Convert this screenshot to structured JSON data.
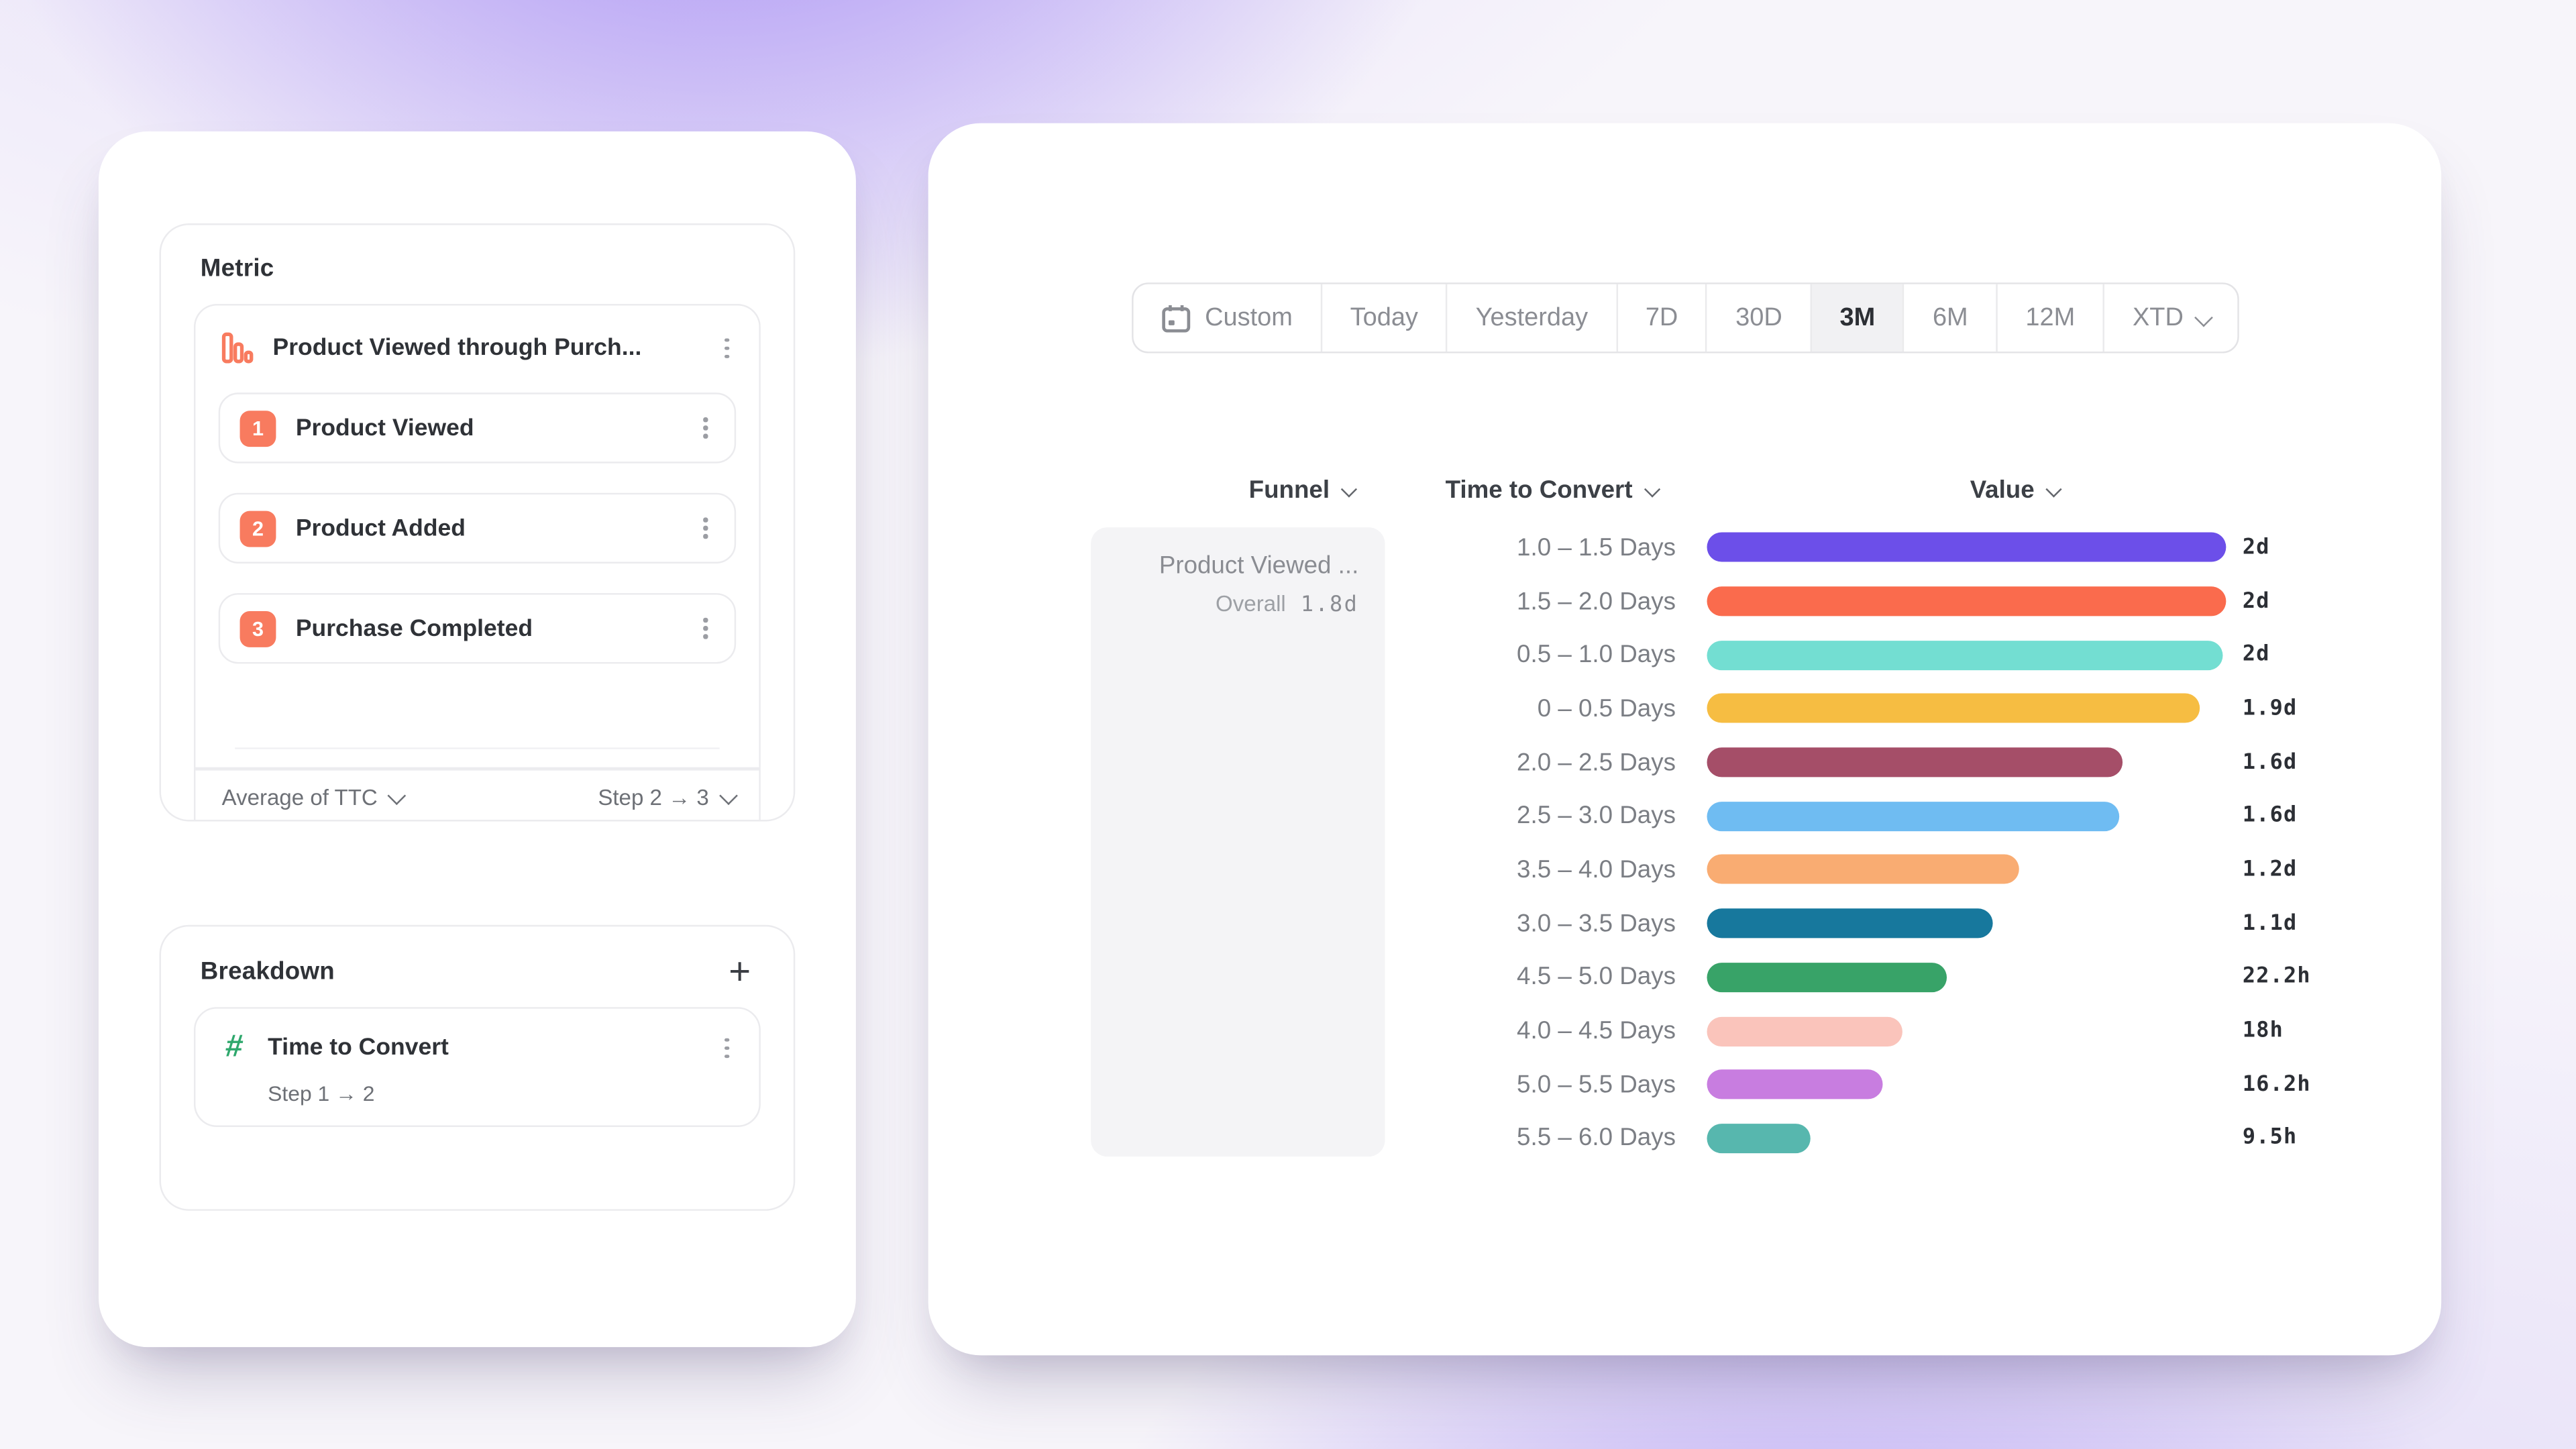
{
  "theme": {
    "accent_orange": "#F87B5F",
    "accent_green": "#2FA86D",
    "background_purple": "#8462F0",
    "selected_range_bg": "#F1F1F3",
    "card_border": "#EBEBEE"
  },
  "left_panel": {
    "metric": {
      "title": "Metric",
      "funnel": {
        "name": "Product Viewed through Purch...",
        "icon": "funnel-bars-icon",
        "steps": [
          {
            "number": "1",
            "label": "Product Viewed"
          },
          {
            "number": "2",
            "label": "Product Added"
          },
          {
            "number": "3",
            "label": "Purchase Completed"
          }
        ],
        "footer": {
          "aggregation": "Average of TTC",
          "step_range": "Step 2 → 3"
        }
      }
    },
    "breakdown": {
      "title": "Breakdown",
      "add_label": "+",
      "item": {
        "icon": "hash-icon",
        "label": "Time to Convert",
        "sublabel": "Step 1 → 2"
      }
    }
  },
  "right_panel": {
    "date_ranges": [
      {
        "label": "Custom",
        "icon": "calendar-icon"
      },
      {
        "label": "Today"
      },
      {
        "label": "Yesterday"
      },
      {
        "label": "7D"
      },
      {
        "label": "30D"
      },
      {
        "label": "3M",
        "selected": true
      },
      {
        "label": "6M"
      },
      {
        "label": "12M"
      },
      {
        "label": "XTD",
        "chevron": true
      }
    ],
    "columns": {
      "funnel": "Funnel",
      "time_to_convert": "Time to Convert",
      "value": "Value"
    },
    "funnel_cell": {
      "name": "Product Viewed ...",
      "overall_label": "Overall",
      "overall_value": "1.8d"
    }
  },
  "chart_data": {
    "type": "bar",
    "orientation": "horizontal",
    "title": "Time to Convert breakdown of Product Viewed funnel",
    "xlabel": "Value",
    "ylabel": "Time to Convert",
    "xmax_hours": 48,
    "grid": false,
    "categories": [
      "1.0 – 1.5 Days",
      "1.5 – 2.0 Days",
      "0.5 – 1.0 Days",
      "0 – 0.5 Days",
      "2.0 – 2.5 Days",
      "2.5 – 3.0 Days",
      "3.5 – 4.0 Days",
      "3.0 – 3.5 Days",
      "4.5 – 5.0 Days",
      "4.0 – 4.5 Days",
      "5.0 – 5.5 Days",
      "5.5 – 6.0 Days"
    ],
    "values_hours": [
      48,
      48,
      47.7,
      45.6,
      38.4,
      38.1,
      28.8,
      26.4,
      22.2,
      18,
      16.2,
      9.5
    ],
    "value_labels": [
      "2d",
      "2d",
      "2d",
      "1.9d",
      "1.6d",
      "1.6d",
      "1.2d",
      "1.1d",
      "22.2h",
      "18h",
      "16.2h",
      "9.5h"
    ],
    "colors": [
      "#6C4FE9",
      "#FA6B4D",
      "#73DED2",
      "#F6BD42",
      "#A54E68",
      "#6FBCF2",
      "#F9AC72",
      "#17789D",
      "#38A368",
      "#FAC4BB",
      "#C87DE0",
      "#57B7AE"
    ]
  }
}
